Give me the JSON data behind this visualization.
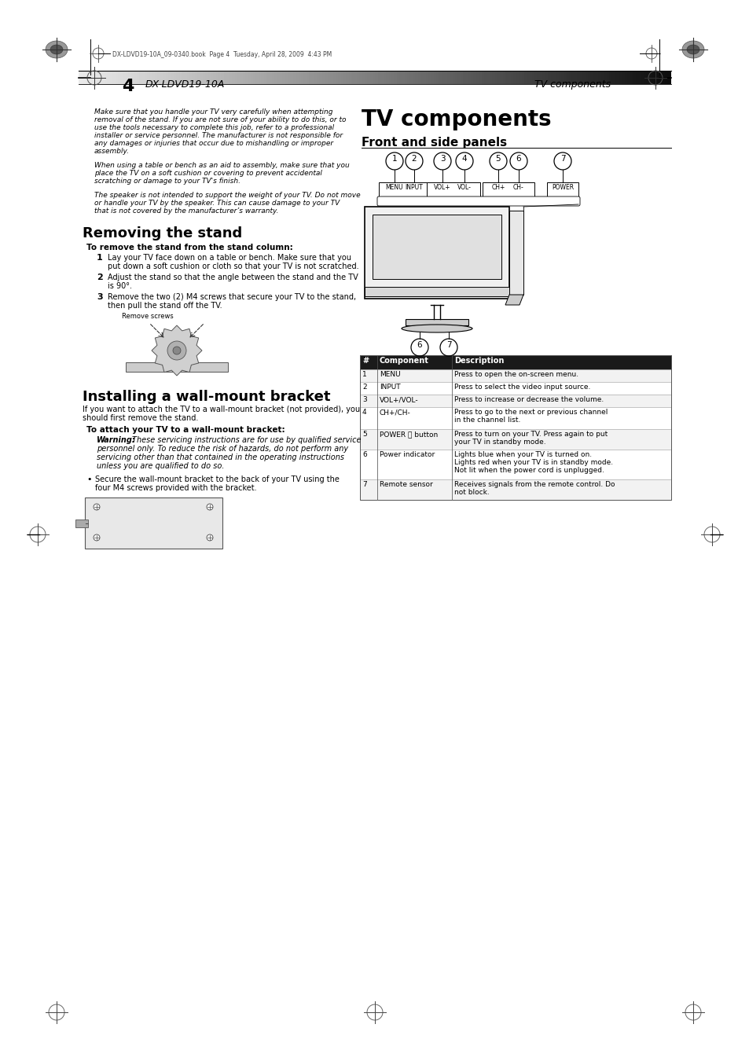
{
  "page_number": "4",
  "model": "DX-LDVD19-10A",
  "page_title_right": "TV components",
  "bg_color": "#ffffff",
  "main_title": "TV components",
  "section1_title": "Front and side panels",
  "section2_title": "Removing the stand",
  "section3_title": "Installing a wall-mount bracket",
  "caution1_lines": [
    "Make sure that you handle your TV very carefully when attempting",
    "removal of the stand. If you are not sure of your ability to do this, or to",
    "use the tools necessary to complete this job, refer to a professional",
    "installer or service personnel. The manufacturer is not responsible for",
    "any damages or injuries that occur due to mishandling or improper",
    "assembly."
  ],
  "caution2_lines": [
    "When using a table or bench as an aid to assembly, make sure that you",
    "place the TV on a soft cushion or covering to prevent accidental",
    "scratching or damage to your TV's finish."
  ],
  "caution3_lines": [
    "The speaker is not intended to support the weight of your TV. Do not move",
    "or handle your TV by the speaker. This can cause damage to your TV",
    "that is not covered by the manufacturer’s warranty."
  ],
  "subsection_remove": "To remove the stand from the stand column:",
  "step1_lines": [
    "Lay your TV face down on a table or bench. Make sure that you",
    "put down a soft cushion or cloth so that your TV is not scratched."
  ],
  "step2_lines": [
    "Adjust the stand so that the angle between the stand and the TV",
    "is 90°."
  ],
  "step3_lines": [
    "Remove the two (2) M4 screws that secure your TV to the stand,",
    "then pull the stand off the TV."
  ],
  "remove_screws_label": "Remove screws",
  "install_lines": [
    "If you want to attach the TV to a wall-mount bracket (not provided), you",
    "should first remove the stand."
  ],
  "subsection_attach": "To attach your TV to a wall-mount bracket:",
  "warning_lines": [
    "Warning: These servicing instructions are for use by qualified service",
    "personnel only. To reduce the risk of hazards, do not perform any",
    "servicing other than that contained in the operating instructions",
    "unless you are qualified to do so."
  ],
  "bullet_lines": [
    "Secure the wall-mount bracket to the back of your TV using the",
    "four M4 screws provided with the bracket."
  ],
  "table_headers": [
    "#",
    "Component",
    "Description"
  ],
  "table_rows": [
    [
      "1",
      "MENU",
      "Press to open the on-screen menu."
    ],
    [
      "2",
      "INPUT",
      "Press to select the video input source."
    ],
    [
      "3",
      "VOL+/VOL-",
      "Press to increase or decrease the volume."
    ],
    [
      "4",
      "CH+/CH-",
      "Press to go to the next or previous channel\nin the channel list."
    ],
    [
      "5",
      "POWER ⏻ button",
      "Press to turn on your TV. Press again to put\nyour TV in standby mode."
    ],
    [
      "6",
      "Power indicator",
      "Lights blue when your TV is turned on.\nLights red when your TV is in standby mode.\nNot lit when the power cord is unplugged."
    ],
    [
      "7",
      "Remote sensor",
      "Receives signals from the remote control. Do\nnot block."
    ]
  ],
  "btn_labels": [
    "MENU",
    "INPUT",
    "VOL+",
    "VOL-",
    "CH+",
    "CH-",
    "POWER"
  ],
  "print_file_text": "DX-LDVD19-10A_09-0340.book  Page 4  Tuesday, April 28, 2009  4:43 PM"
}
